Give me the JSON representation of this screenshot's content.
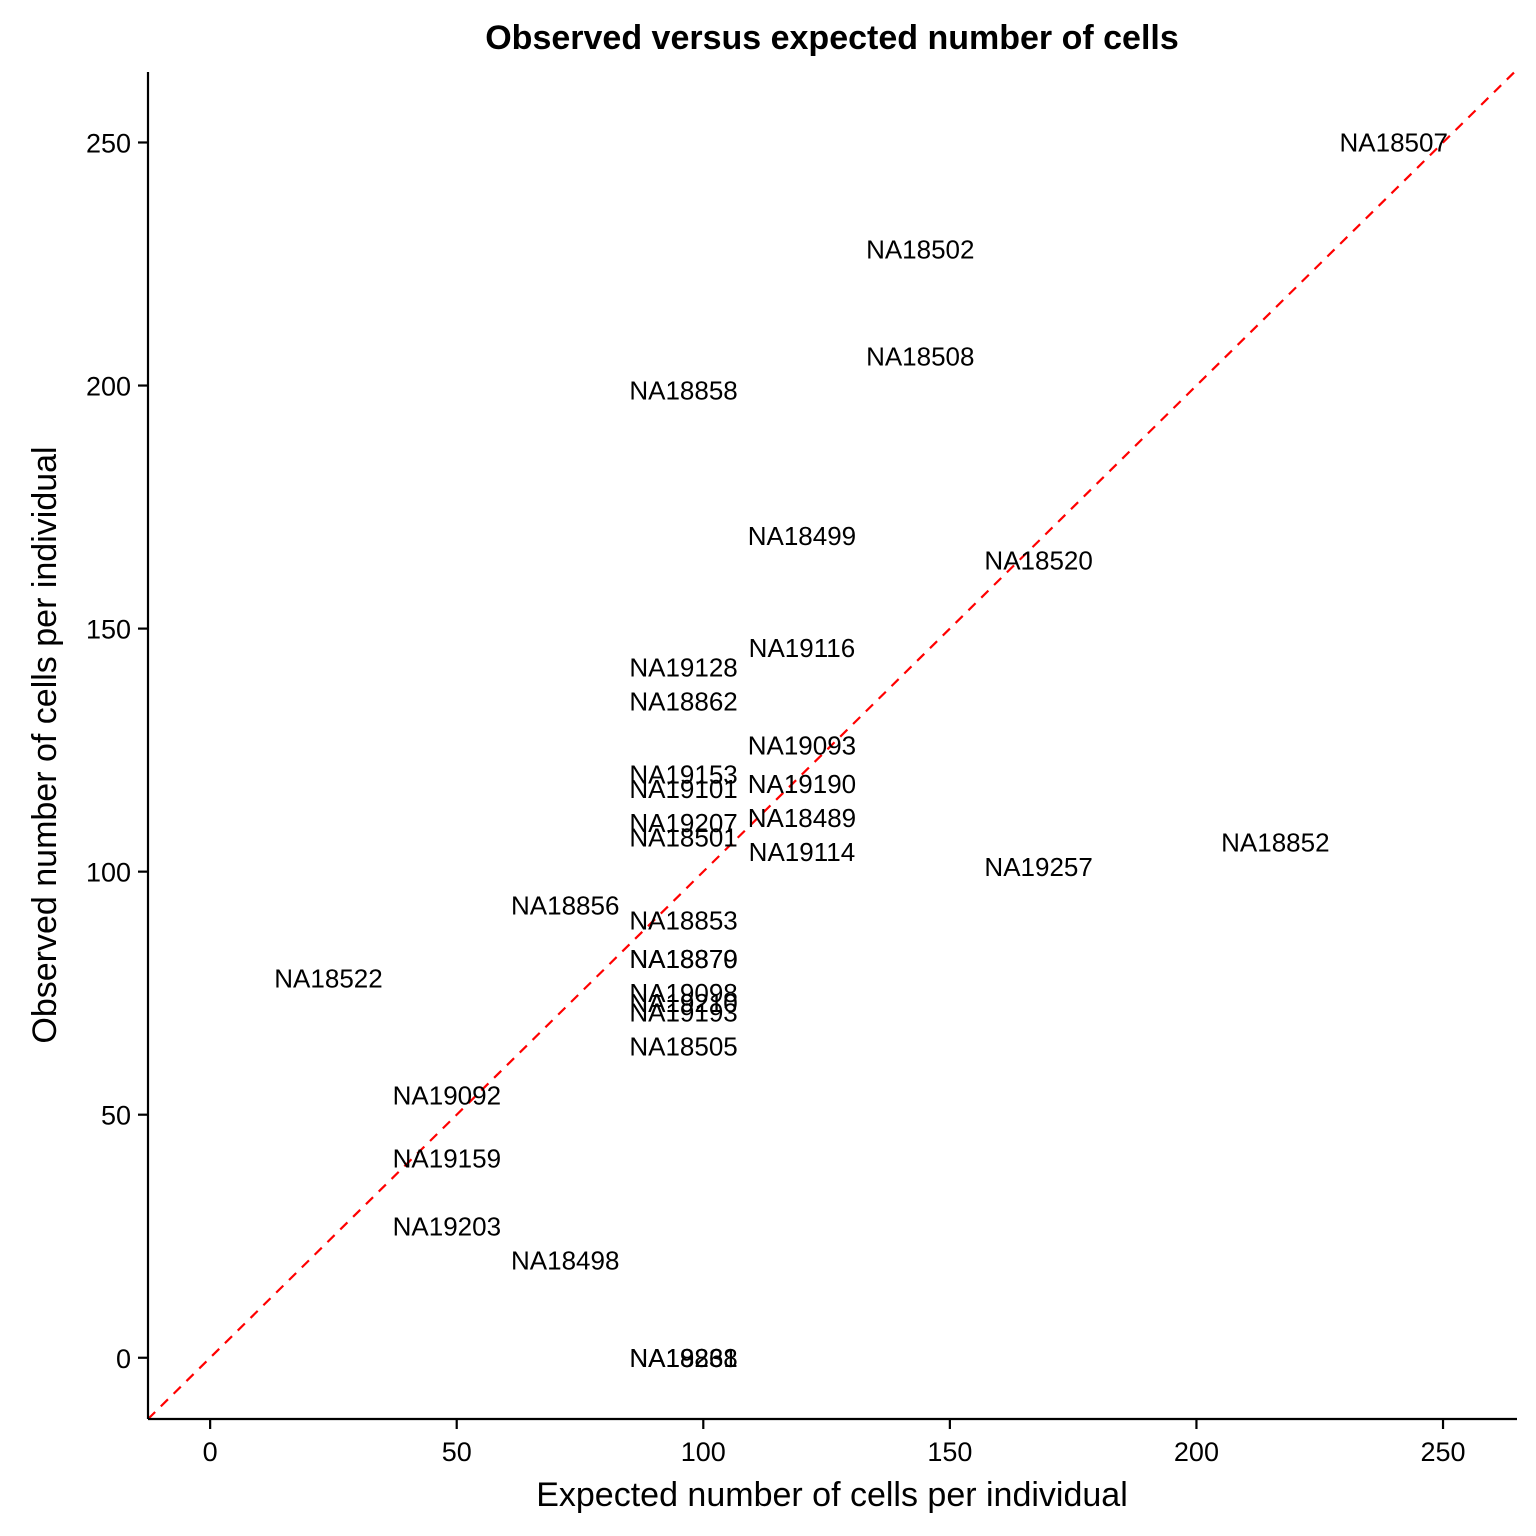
{
  "chart_data": {
    "type": "scatter",
    "title": "Observed versus expected number of cells",
    "xlabel": "Expected number of cells per individual",
    "ylabel": "Observed number of cells per individual",
    "xlim": [
      -12.6,
      265
    ],
    "ylim": [
      -12.6,
      264.5
    ],
    "xticks": [
      0,
      50,
      100,
      150,
      200,
      250
    ],
    "yticks": [
      0,
      50,
      100,
      150,
      200,
      250
    ],
    "grid": false,
    "legend": "none",
    "reference_line": {
      "slope": 1,
      "intercept": 0,
      "color": "#ff0000",
      "style": "dashed"
    },
    "points": [
      {
        "label": "NA18507",
        "x": 240,
        "y": 250
      },
      {
        "label": "NA18502",
        "x": 144,
        "y": 228
      },
      {
        "label": "NA18508",
        "x": 144,
        "y": 206
      },
      {
        "label": "NA18858",
        "x": 96,
        "y": 199
      },
      {
        "label": "NA18499",
        "x": 120,
        "y": 169
      },
      {
        "label": "NA18520",
        "x": 168,
        "y": 164
      },
      {
        "label": "NA19116",
        "x": 120,
        "y": 146
      },
      {
        "label": "NA19128",
        "x": 96,
        "y": 142
      },
      {
        "label": "NA18862",
        "x": 96,
        "y": 135
      },
      {
        "label": "NA19093",
        "x": 120,
        "y": 126
      },
      {
        "label": "NA19153",
        "x": 96,
        "y": 120
      },
      {
        "label": "NA19101",
        "x": 96,
        "y": 117
      },
      {
        "label": "NA19190",
        "x": 120,
        "y": 118
      },
      {
        "label": "NA18489",
        "x": 120,
        "y": 111
      },
      {
        "label": "NA19207",
        "x": 96,
        "y": 110
      },
      {
        "label": "NA18501",
        "x": 96,
        "y": 107
      },
      {
        "label": "NA19114",
        "x": 120,
        "y": 104
      },
      {
        "label": "NA18852",
        "x": 216,
        "y": 106
      },
      {
        "label": "NA19257",
        "x": 168,
        "y": 101
      },
      {
        "label": "NA18856",
        "x": 72,
        "y": 93
      },
      {
        "label": "NA18853",
        "x": 96,
        "y": 90
      },
      {
        "label": "NA18522",
        "x": 24,
        "y": 78
      },
      {
        "label": "NA18870",
        "x": 96,
        "y": 82
      },
      {
        "label": "NA18879",
        "x": 96,
        "y": 82
      },
      {
        "label": "NA19098",
        "x": 96,
        "y": 75
      },
      {
        "label": "NA19210",
        "x": 96,
        "y": 73
      },
      {
        "label": "NA19193",
        "x": 96,
        "y": 71
      },
      {
        "label": "NA18505",
        "x": 96,
        "y": 64
      },
      {
        "label": "NA19092",
        "x": 48,
        "y": 54
      },
      {
        "label": "NA19159",
        "x": 48,
        "y": 41
      },
      {
        "label": "NA19203",
        "x": 48,
        "y": 27
      },
      {
        "label": "NA18498",
        "x": 72,
        "y": 20
      },
      {
        "label": "NA18861",
        "x": 96,
        "y": 0
      },
      {
        "label": "NA19238",
        "x": 96,
        "y": 0
      }
    ]
  }
}
